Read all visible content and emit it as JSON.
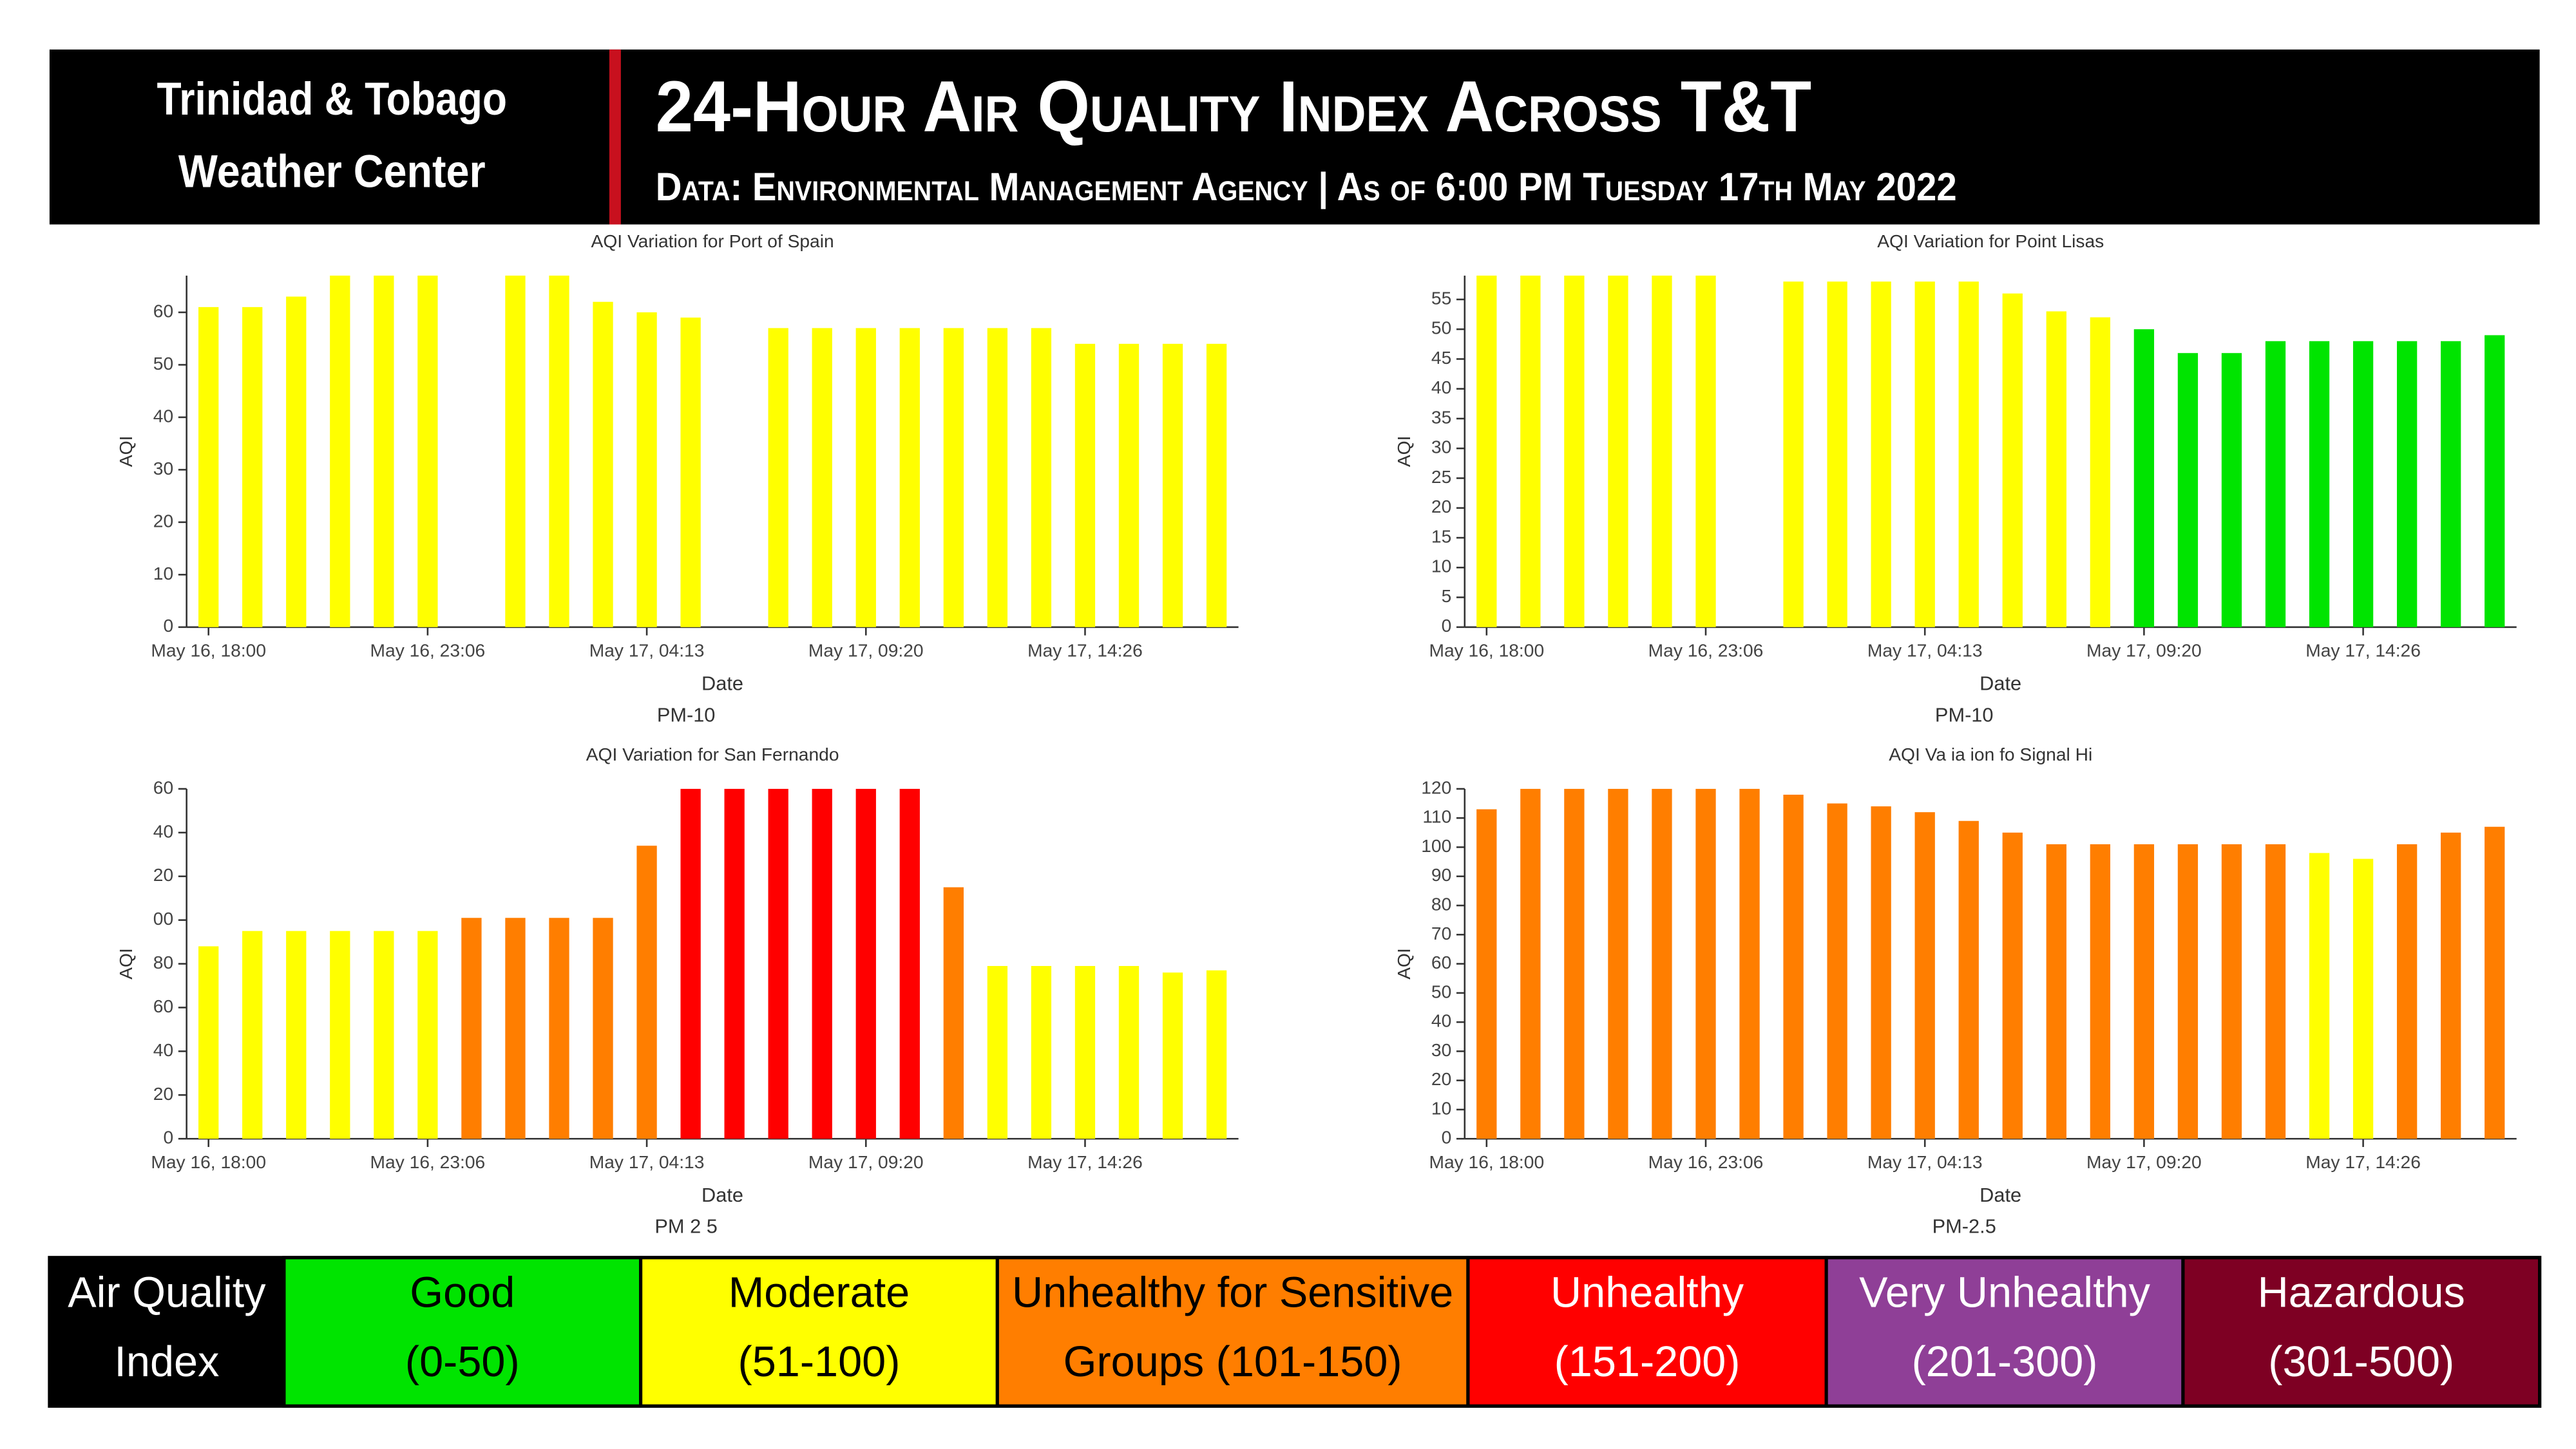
{
  "header": {
    "left_lines": [
      "Trinidad & Tobago",
      "Weather Center"
    ],
    "title": "24-Hour Air Quality Index Across T&T",
    "subtitle": "Data: Environmental Management Agency | As of 6:00 PM Tuesday 17th May 2022"
  },
  "chart_data": [
    {
      "type": "bar",
      "title": "AQI Variation for Port of Spain",
      "xlabel": "Date",
      "ylabel": "AQI",
      "footer": "PM-10",
      "categories": [
        "May 16, 18:00",
        null,
        null,
        null,
        null,
        "May 16, 23:06",
        null,
        null,
        null,
        null,
        "May 17, 04:13",
        null,
        null,
        null,
        null,
        "May 17, 09:20",
        null,
        null,
        null,
        null,
        "May 17, 14:26",
        null,
        null,
        null
      ],
      "values": [
        61,
        61,
        63,
        67,
        67,
        67,
        null,
        67,
        67,
        62,
        60,
        59,
        null,
        57,
        57,
        57,
        57,
        57,
        57,
        57,
        54,
        54,
        54,
        54
      ],
      "colors": [
        "#ffff00",
        "#ffff00",
        "#ffff00",
        "#ffff00",
        "#ffff00",
        "#ffff00",
        null,
        "#ffff00",
        "#ffff00",
        "#ffff00",
        "#ffff00",
        "#ffff00",
        null,
        "#ffff00",
        "#ffff00",
        "#ffff00",
        "#ffff00",
        "#ffff00",
        "#ffff00",
        "#ffff00",
        "#ffff00",
        "#ffff00",
        "#ffff00",
        "#ffff00"
      ],
      "ylim": [
        0,
        67
      ],
      "yticks": [
        0,
        10,
        20,
        30,
        40,
        50,
        60
      ]
    },
    {
      "type": "bar",
      "title": "AQI Variation for Point Lisas",
      "xlabel": "Date",
      "ylabel": "AQI",
      "footer": "PM-10",
      "categories": [
        "May 16, 18:00",
        null,
        null,
        null,
        null,
        "May 16, 23:06",
        null,
        null,
        null,
        null,
        "May 17, 04:13",
        null,
        null,
        null,
        null,
        "May 17, 09:20",
        null,
        null,
        null,
        null,
        "May 17, 14:26",
        null,
        null,
        null
      ],
      "values": [
        59,
        59,
        59,
        59,
        59,
        59,
        null,
        58,
        58,
        58,
        58,
        58,
        56,
        53,
        52,
        50,
        46,
        46,
        48,
        48,
        48,
        48,
        48,
        49
      ],
      "colors": [
        "#ffff00",
        "#ffff00",
        "#ffff00",
        "#ffff00",
        "#ffff00",
        "#ffff00",
        null,
        "#ffff00",
        "#ffff00",
        "#ffff00",
        "#ffff00",
        "#ffff00",
        "#ffff00",
        "#ffff00",
        "#ffff00",
        "#00e400",
        "#00e400",
        "#00e400",
        "#00e400",
        "#00e400",
        "#00e400",
        "#00e400",
        "#00e400",
        "#00e400"
      ],
      "ylim": [
        0,
        59
      ],
      "yticks": [
        0,
        5,
        10,
        15,
        20,
        25,
        30,
        35,
        40,
        45,
        50,
        55
      ]
    },
    {
      "type": "bar",
      "title": "AQI Variation for San Fernando",
      "xlabel": "Date",
      "ylabel": "AQI",
      "footer": "PM 2 5",
      "categories": [
        "May 16, 18:00",
        null,
        null,
        null,
        null,
        "May 16, 23:06",
        null,
        null,
        null,
        null,
        "May 17, 04:13",
        null,
        null,
        null,
        null,
        "May 17, 09:20",
        null,
        null,
        null,
        null,
        "May 17, 14:26",
        null,
        null,
        null
      ],
      "values": [
        88,
        95,
        95,
        95,
        95,
        95,
        101,
        101,
        101,
        101,
        134,
        160,
        160,
        160,
        160,
        160,
        160,
        115,
        79,
        79,
        79,
        79,
        76,
        77
      ],
      "colors": [
        "#ffff00",
        "#ffff00",
        "#ffff00",
        "#ffff00",
        "#ffff00",
        "#ffff00",
        "#ff7e00",
        "#ff7e00",
        "#ff7e00",
        "#ff7e00",
        "#ff7e00",
        "#ff0000",
        "#ff0000",
        "#ff0000",
        "#ff0000",
        "#ff0000",
        "#ff0000",
        "#ff7e00",
        "#ffff00",
        "#ffff00",
        "#ffff00",
        "#ffff00",
        "#ffff00",
        "#ffff00"
      ],
      "ylim": [
        0,
        160
      ],
      "yticks": [
        0,
        20,
        40,
        60,
        80,
        {
          "value": 100,
          "label": "00"
        },
        {
          "value": 120,
          "label": "20"
        },
        {
          "value": 140,
          "label": "40"
        },
        {
          "value": 160,
          "label": "60"
        }
      ]
    },
    {
      "type": "bar",
      "title": "AQI Va ia ion fo  Signal Hi",
      "xlabel": "Date",
      "ylabel": "AQI",
      "footer": "PM-2.5",
      "categories": [
        "May 16, 18:00",
        null,
        null,
        null,
        null,
        "May 16, 23:06",
        null,
        null,
        null,
        null,
        "May 17, 04:13",
        null,
        null,
        null,
        null,
        "May 17, 09:20",
        null,
        null,
        null,
        null,
        "May 17, 14:26",
        null,
        null,
        null
      ],
      "values": [
        113,
        120,
        120,
        120,
        120,
        120,
        120,
        118,
        115,
        114,
        112,
        109,
        105,
        101,
        101,
        101,
        101,
        101,
        101,
        98,
        96,
        101,
        105,
        107
      ],
      "colors": [
        "#ff7e00",
        "#ff7e00",
        "#ff7e00",
        "#ff7e00",
        "#ff7e00",
        "#ff7e00",
        "#ff7e00",
        "#ff7e00",
        "#ff7e00",
        "#ff7e00",
        "#ff7e00",
        "#ff7e00",
        "#ff7e00",
        "#ff7e00",
        "#ff7e00",
        "#ff7e00",
        "#ff7e00",
        "#ff7e00",
        "#ff7e00",
        "#ffff00",
        "#ffff00",
        "#ff7e00",
        "#ff7e00",
        "#ff7e00"
      ],
      "ylim": [
        0,
        120
      ],
      "yticks": [
        0,
        10,
        20,
        30,
        40,
        50,
        60,
        70,
        80,
        90,
        100,
        110,
        120
      ]
    }
  ],
  "legend": {
    "title_lines": [
      "Air Quality",
      "Index"
    ],
    "items": [
      {
        "lines": [
          "Good",
          "(0-50)"
        ],
        "color": "#00e400",
        "text_color": "#000000"
      },
      {
        "lines": [
          "Moderate",
          "(51-100)"
        ],
        "color": "#ffff00",
        "text_color": "#000000"
      },
      {
        "lines": [
          "Unhealthy for Sensitive",
          "Groups (101-150)"
        ],
        "color": "#ff7e00",
        "text_color": "#000000"
      },
      {
        "lines": [
          "Unhealthy",
          "(151-200)"
        ],
        "color": "#ff0000",
        "text_color": "#ffffff"
      },
      {
        "lines": [
          "Very Unhealthy",
          "(201-300)"
        ],
        "color": "#8f3f97",
        "text_color": "#ffffff"
      },
      {
        "lines": [
          "Hazardous",
          "(301-500)"
        ],
        "color": "#7e0023",
        "text_color": "#ffffff"
      }
    ]
  }
}
